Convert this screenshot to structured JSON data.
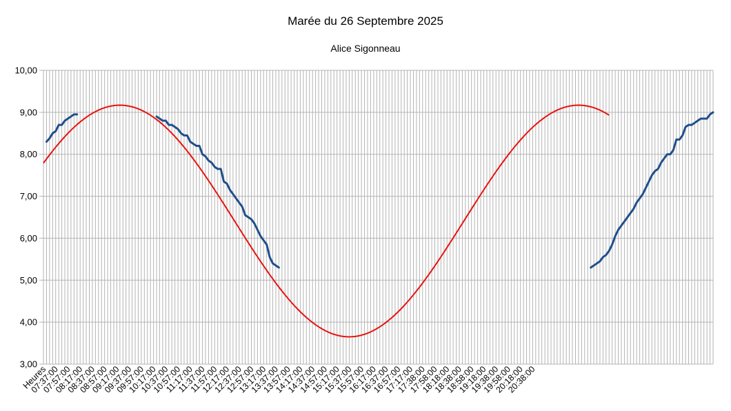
{
  "chart_data": {
    "type": "line",
    "title": "Marée du 26 Septembre 2025",
    "subtitle": "Alice Sigonneau",
    "xlabel": "",
    "ylabel": "",
    "ylim": [
      3,
      10
    ],
    "y_tick_step": 1,
    "y_tick_labels": [
      "3,00",
      "4,00",
      "5,00",
      "6,00",
      "7,00",
      "8,00",
      "9,00",
      "10,00"
    ],
    "x_tick_labels": [
      "Heures",
      "07:37:00",
      "07:57:00",
      "08:17:00",
      "08:37:00",
      "08:57:00",
      "09:17:00",
      "09:37:00",
      "09:57:00",
      "10:17:00",
      "10:37:00",
      "10:57:00",
      "11:17:00",
      "11:37:00",
      "11:57:00",
      "12:17:00",
      "12:37:00",
      "12:57:00",
      "13:17:00",
      "13:37:00",
      "13:57:00",
      "14:17:00",
      "14:37:00",
      "14:57:00",
      "15:17:00",
      "15:37:00",
      "15:57:00",
      "16:17:00",
      "16:37:00",
      "16:57:00",
      "17:17:00",
      "17:38:00",
      "17:58:00",
      "18:18:00",
      "18:38:00",
      "18:58:00",
      "19:18:00",
      "19:38:00",
      "19:58:00",
      "20:18:00",
      "20:38:00"
    ],
    "x_interval_minutes": 5,
    "grid": true,
    "legend": "none",
    "series": [
      {
        "color": "#1f4e8c",
        "style": "measured",
        "values": [
          null,
          8.3,
          8.38,
          8.5,
          8.55,
          8.7,
          8.7,
          8.8,
          8.85,
          8.9,
          8.95,
          8.95,
          null,
          null,
          null,
          null,
          null,
          null,
          null,
          null,
          null,
          null,
          null,
          null,
          null,
          null,
          null,
          null,
          null,
          null,
          null,
          null,
          null,
          null,
          null,
          null,
          null,
          8.9,
          8.85,
          8.8,
          8.8,
          8.7,
          8.7,
          8.65,
          8.6,
          8.5,
          8.45,
          8.45,
          8.3,
          8.25,
          8.2,
          8.2,
          8.0,
          7.95,
          7.85,
          7.8,
          7.7,
          7.65,
          7.65,
          7.35,
          7.3,
          7.15,
          7.05,
          6.95,
          6.85,
          6.75,
          6.55,
          6.5,
          6.45,
          6.35,
          6.2,
          6.05,
          5.95,
          5.85,
          5.55,
          5.4,
          5.35,
          5.3,
          null,
          null,
          null,
          null,
          null,
          null,
          null,
          null,
          null,
          null,
          null,
          null,
          null,
          null,
          null,
          null,
          null,
          null,
          null,
          null,
          null,
          null,
          null,
          null,
          null,
          null,
          null,
          null,
          null,
          null,
          null,
          null,
          null,
          null,
          null,
          null,
          null,
          null,
          null,
          null,
          null,
          null,
          null,
          null,
          null,
          null,
          null,
          null,
          null,
          null,
          null,
          null,
          null,
          null,
          null,
          null,
          null,
          null,
          null,
          null,
          null,
          null,
          null,
          null,
          null,
          null,
          null,
          null,
          null,
          null,
          null,
          null,
          null,
          null,
          null,
          null,
          null,
          null,
          null,
          null,
          null,
          null,
          null,
          null,
          null,
          null,
          null,
          null,
          null,
          null,
          null,
          null,
          null,
          null,
          null,
          null,
          null,
          null,
          null,
          null,
          null,
          5.3,
          5.35,
          5.4,
          5.45,
          5.55,
          5.6,
          5.7,
          5.85,
          6.05,
          6.2,
          6.3,
          6.4,
          6.5,
          6.6,
          6.7,
          6.85,
          6.95,
          7.05,
          7.2,
          7.35,
          7.5,
          7.6,
          7.65,
          7.8,
          7.9,
          8.0,
          8.0,
          8.1,
          8.35,
          8.35,
          8.45,
          8.65,
          8.7,
          8.7,
          8.75,
          8.8,
          8.85,
          8.85,
          8.85,
          8.95,
          9.0
        ]
      },
      {
        "color": "#e8120e",
        "style": "fitted",
        "mean": 6.41,
        "amplitude": 2.76,
        "period_points": 150,
        "peak_index": 25,
        "count": 186
      }
    ]
  }
}
